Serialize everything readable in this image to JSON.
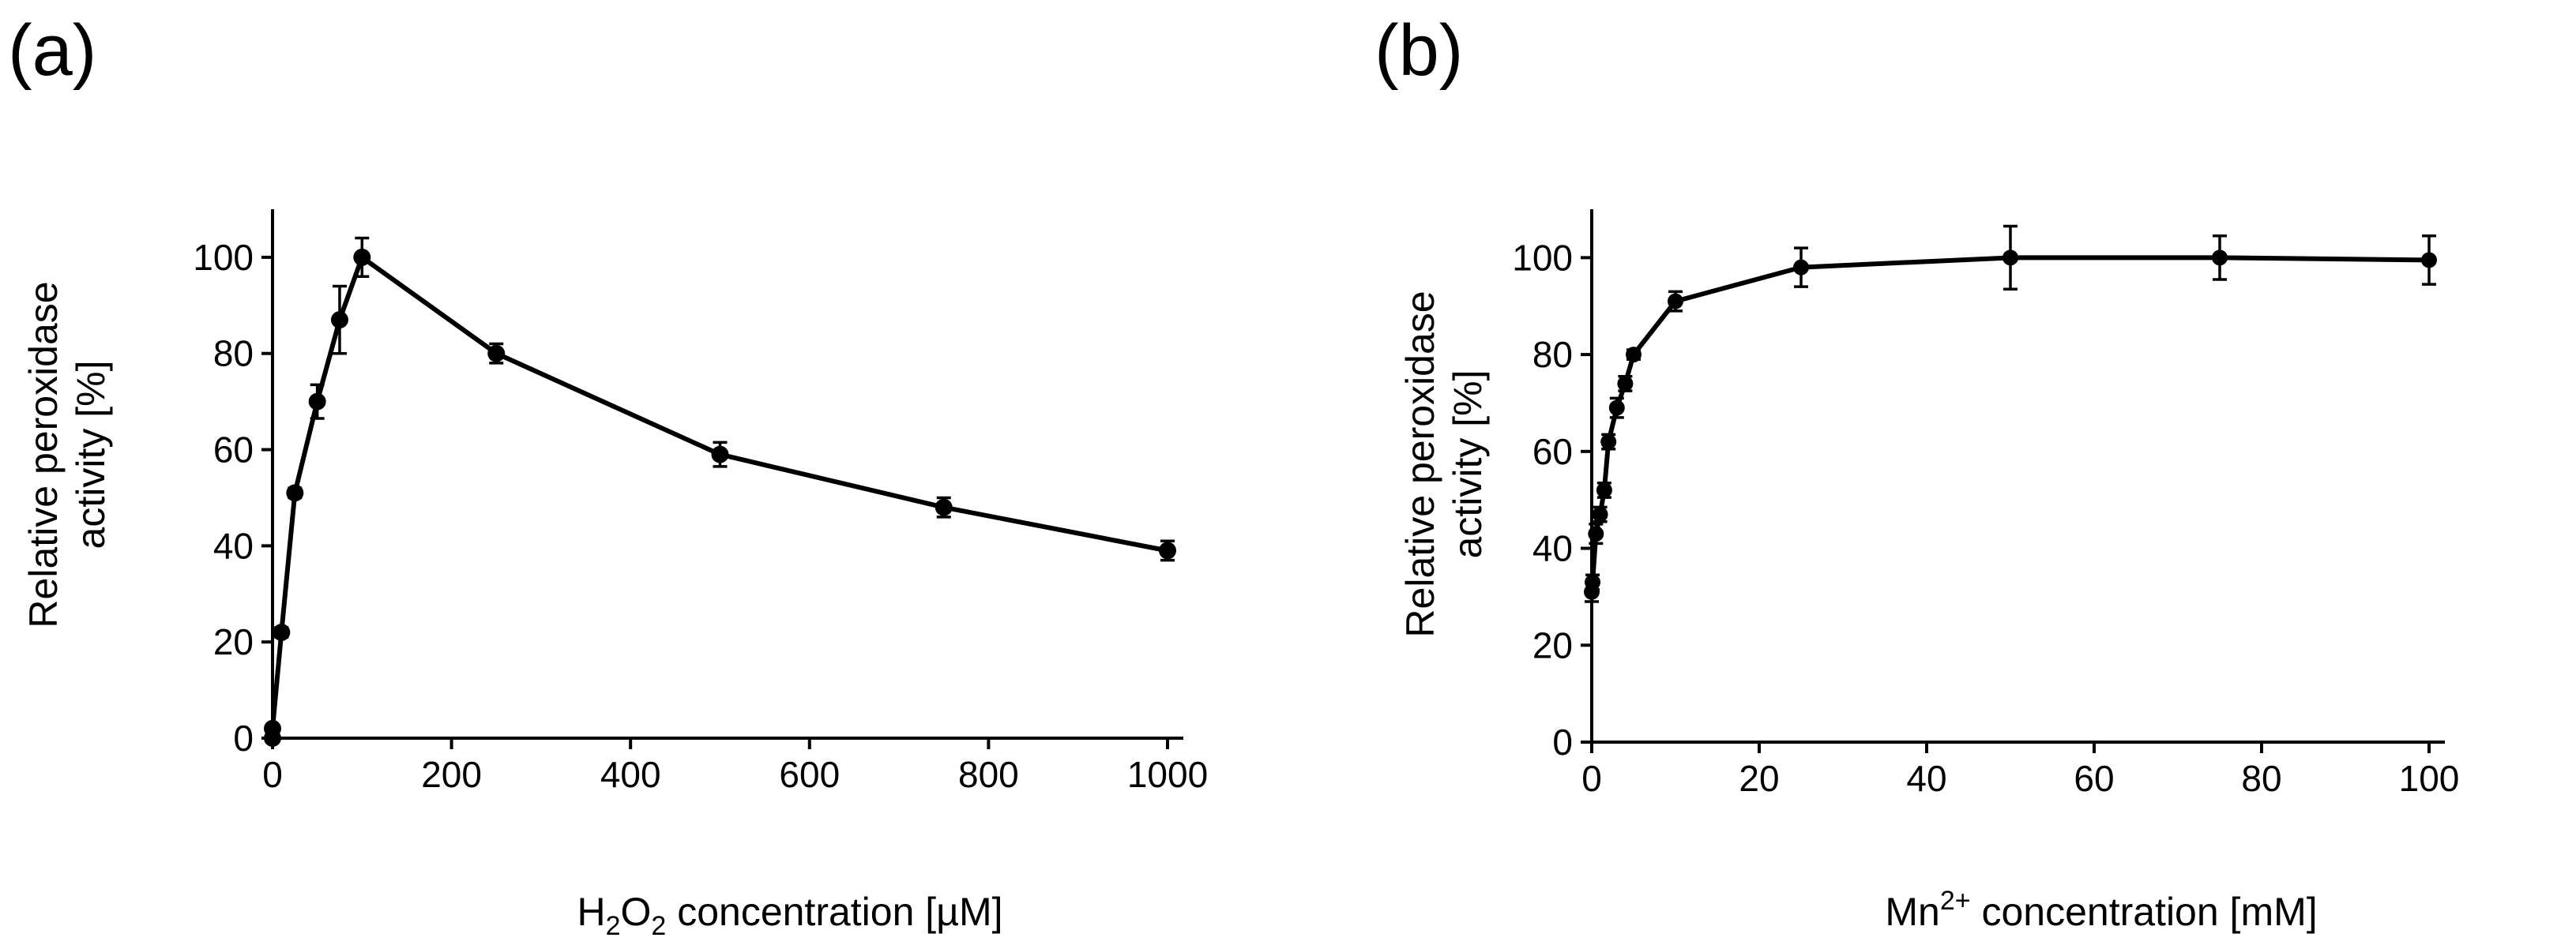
{
  "chart_data": [
    {
      "panel_label": "(a)",
      "type": "line",
      "ylabel_line1": "Relative peroxidase",
      "ylabel_line2": "activity [%]",
      "xlabel_prefix": "H",
      "xlabel_sub1": "2",
      "xlabel_mid": "O",
      "xlabel_sub2": "2",
      "xlabel_suffix": " concentration [µM]",
      "xlim": [
        0,
        1000
      ],
      "ylim": [
        0,
        110
      ],
      "xticks": [
        "0",
        "200",
        "400",
        "600",
        "800",
        "1000"
      ],
      "yticks": [
        "0",
        "20",
        "40",
        "60",
        "80",
        "100"
      ],
      "x": [
        0,
        0,
        10,
        25,
        50,
        75,
        100,
        250,
        500,
        750,
        1000
      ],
      "y": [
        0,
        2,
        22,
        51,
        70,
        87,
        100,
        80,
        59,
        48,
        39
      ],
      "err": [
        0,
        0,
        1,
        1,
        3.5,
        7,
        4,
        2,
        2.5,
        2,
        2
      ]
    },
    {
      "panel_label": "(b)",
      "type": "line",
      "ylabel_line1": "Relative peroxidase",
      "ylabel_line2": "activity [%]",
      "xlabel_prefix": "Mn",
      "xlabel_sup": "2+",
      "xlabel_suffix": " concentration [mM]",
      "xlim": [
        0,
        100
      ],
      "ylim": [
        0,
        110
      ],
      "xticks": [
        "0",
        "20",
        "40",
        "60",
        "80",
        "100"
      ],
      "yticks": [
        "0",
        "20",
        "40",
        "60",
        "80",
        "100"
      ],
      "x": [
        0,
        0.1,
        0.5,
        1,
        1.5,
        2,
        3,
        4,
        5,
        10,
        25,
        50,
        75,
        100
      ],
      "y": [
        31,
        33,
        43,
        47,
        52,
        62,
        69,
        74,
        80,
        91,
        98,
        100,
        100,
        99.5
      ],
      "err": [
        2,
        1.5,
        2,
        1.5,
        1.5,
        1.5,
        2,
        1.5,
        1,
        2,
        4,
        6.5,
        4.5,
        5
      ]
    }
  ]
}
